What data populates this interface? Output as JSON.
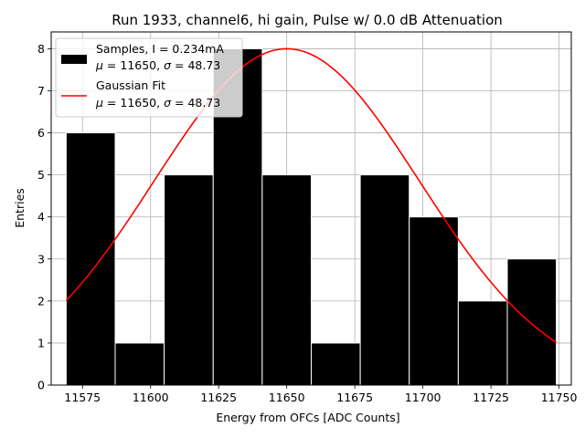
{
  "chart_data": {
    "type": "bar",
    "title": "Run 1933, channel6, hi gain, Pulse w/ 0.0 dB Attenuation",
    "xlabel": "Energy from OFCs [ADC Counts]",
    "ylabel": "Entries",
    "xlim": [
      11563.5,
      11754.5
    ],
    "ylim": [
      0,
      8.4
    ],
    "xticks": [
      11575,
      11600,
      11625,
      11650,
      11675,
      11700,
      11725,
      11750
    ],
    "yticks": [
      0,
      1,
      2,
      3,
      4,
      5,
      6,
      7,
      8
    ],
    "grid": true,
    "legend_position": "upper-left",
    "histogram": {
      "bin_edges": [
        11569,
        11587,
        11605,
        11623,
        11641,
        11659,
        11677,
        11695,
        11713,
        11731,
        11749
      ],
      "counts": [
        6,
        1,
        5,
        8,
        5,
        1,
        5,
        4,
        2,
        3
      ],
      "color": "#000000",
      "edgecolor": "#ffffff"
    },
    "fit": {
      "mu": 11650,
      "sigma": 48.73,
      "amplitude": 8.0,
      "x_range": [
        11569,
        11749
      ],
      "color": "#ff0000"
    },
    "legend": [
      {
        "kind": "patch",
        "line1": "Samples, I = 0.234mA",
        "line2_mu": "11650",
        "line2_sigma": "48.73",
        "color": "#000000"
      },
      {
        "kind": "line",
        "line1": "Gaussian Fit",
        "line2_mu": "11650",
        "line2_sigma": "48.73",
        "color": "#ff0000"
      }
    ]
  }
}
